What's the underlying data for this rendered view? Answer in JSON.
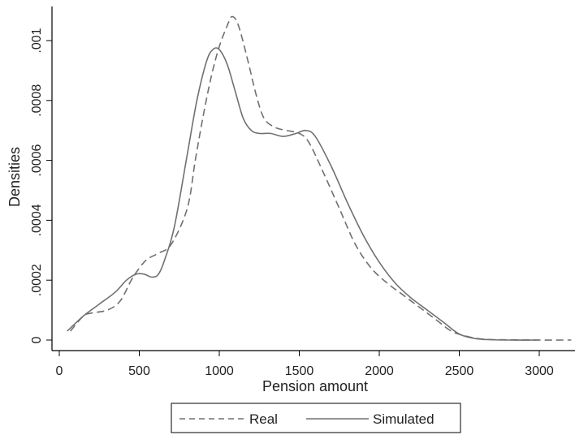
{
  "chart_data": {
    "type": "line",
    "xlabel": "Pension amount",
    "ylabel": "Densities",
    "xlim": [
      0,
      3200
    ],
    "ylim": [
      0,
      0.00105
    ],
    "x_ticks": [
      0,
      500,
      1000,
      1500,
      2000,
      2500,
      3000
    ],
    "x_tick_labels": [
      "0",
      "500",
      "1000",
      "1500",
      "2000",
      "2500",
      "3000"
    ],
    "y_ticks": [
      0,
      0.0002,
      0.0004,
      0.0006,
      0.0008,
      0.001
    ],
    "y_tick_labels": [
      "0",
      ".0002",
      ".0004",
      ".0006",
      ".0008",
      ".001"
    ],
    "grid": false,
    "legend_position": "bottom",
    "colors": {
      "line": "#707070",
      "axis": "#000000"
    },
    "series": [
      {
        "name": "Real",
        "style": "dashed",
        "points": [
          [
            70,
            3e-05
          ],
          [
            150,
            8e-05
          ],
          [
            200,
            9e-05
          ],
          [
            300,
            0.0001
          ],
          [
            380,
            0.00013
          ],
          [
            450,
            0.0002
          ],
          [
            500,
            0.00024
          ],
          [
            550,
            0.00027
          ],
          [
            620,
            0.00029
          ],
          [
            700,
            0.00032
          ],
          [
            800,
            0.00044
          ],
          [
            850,
            0.0006
          ],
          [
            900,
            0.00075
          ],
          [
            950,
            0.00088
          ],
          [
            1000,
            0.00098
          ],
          [
            1050,
            0.00105
          ],
          [
            1080,
            0.00108
          ],
          [
            1120,
            0.00105
          ],
          [
            1180,
            0.00093
          ],
          [
            1230,
            0.00082
          ],
          [
            1280,
            0.00074
          ],
          [
            1350,
            0.00071
          ],
          [
            1420,
            0.0007
          ],
          [
            1500,
            0.00069
          ],
          [
            1560,
            0.00066
          ],
          [
            1650,
            0.00056
          ],
          [
            1750,
            0.00044
          ],
          [
            1850,
            0.00032
          ],
          [
            1950,
            0.00024
          ],
          [
            2050,
            0.00019
          ],
          [
            2150,
            0.00015
          ],
          [
            2250,
            0.00011
          ],
          [
            2350,
            7e-05
          ],
          [
            2450,
            3e-05
          ],
          [
            2550,
            1.2e-05
          ],
          [
            2650,
            3e-06
          ],
          [
            2800,
            8e-07
          ],
          [
            3000,
            0.0
          ],
          [
            3200,
            0.0
          ]
        ]
      },
      {
        "name": "Simulated",
        "style": "solid",
        "points": [
          [
            50,
            3e-05
          ],
          [
            150,
            8e-05
          ],
          [
            250,
            0.00012
          ],
          [
            350,
            0.00016
          ],
          [
            420,
            0.0002
          ],
          [
            480,
            0.00022
          ],
          [
            530,
            0.00022
          ],
          [
            580,
            0.00021
          ],
          [
            620,
            0.00022
          ],
          [
            660,
            0.00027
          ],
          [
            720,
            0.00038
          ],
          [
            800,
            0.00062
          ],
          [
            860,
            0.0008
          ],
          [
            920,
            0.00093
          ],
          [
            960,
            0.00097
          ],
          [
            1000,
            0.00097
          ],
          [
            1050,
            0.00092
          ],
          [
            1100,
            0.00083
          ],
          [
            1150,
            0.00074
          ],
          [
            1200,
            0.0007
          ],
          [
            1250,
            0.00069
          ],
          [
            1320,
            0.00069
          ],
          [
            1400,
            0.00068
          ],
          [
            1480,
            0.00069
          ],
          [
            1540,
            0.0007
          ],
          [
            1600,
            0.00068
          ],
          [
            1700,
            0.00058
          ],
          [
            1800,
            0.00046
          ],
          [
            1900,
            0.00035
          ],
          [
            2000,
            0.00026
          ],
          [
            2100,
            0.00019
          ],
          [
            2200,
            0.00014
          ],
          [
            2300,
            0.0001
          ],
          [
            2400,
            6e-05
          ],
          [
            2500,
            2e-05
          ],
          [
            2600,
            5e-06
          ],
          [
            2700,
            1e-06
          ],
          [
            2800,
            0.0
          ],
          [
            3000,
            0.0
          ]
        ]
      }
    ]
  }
}
